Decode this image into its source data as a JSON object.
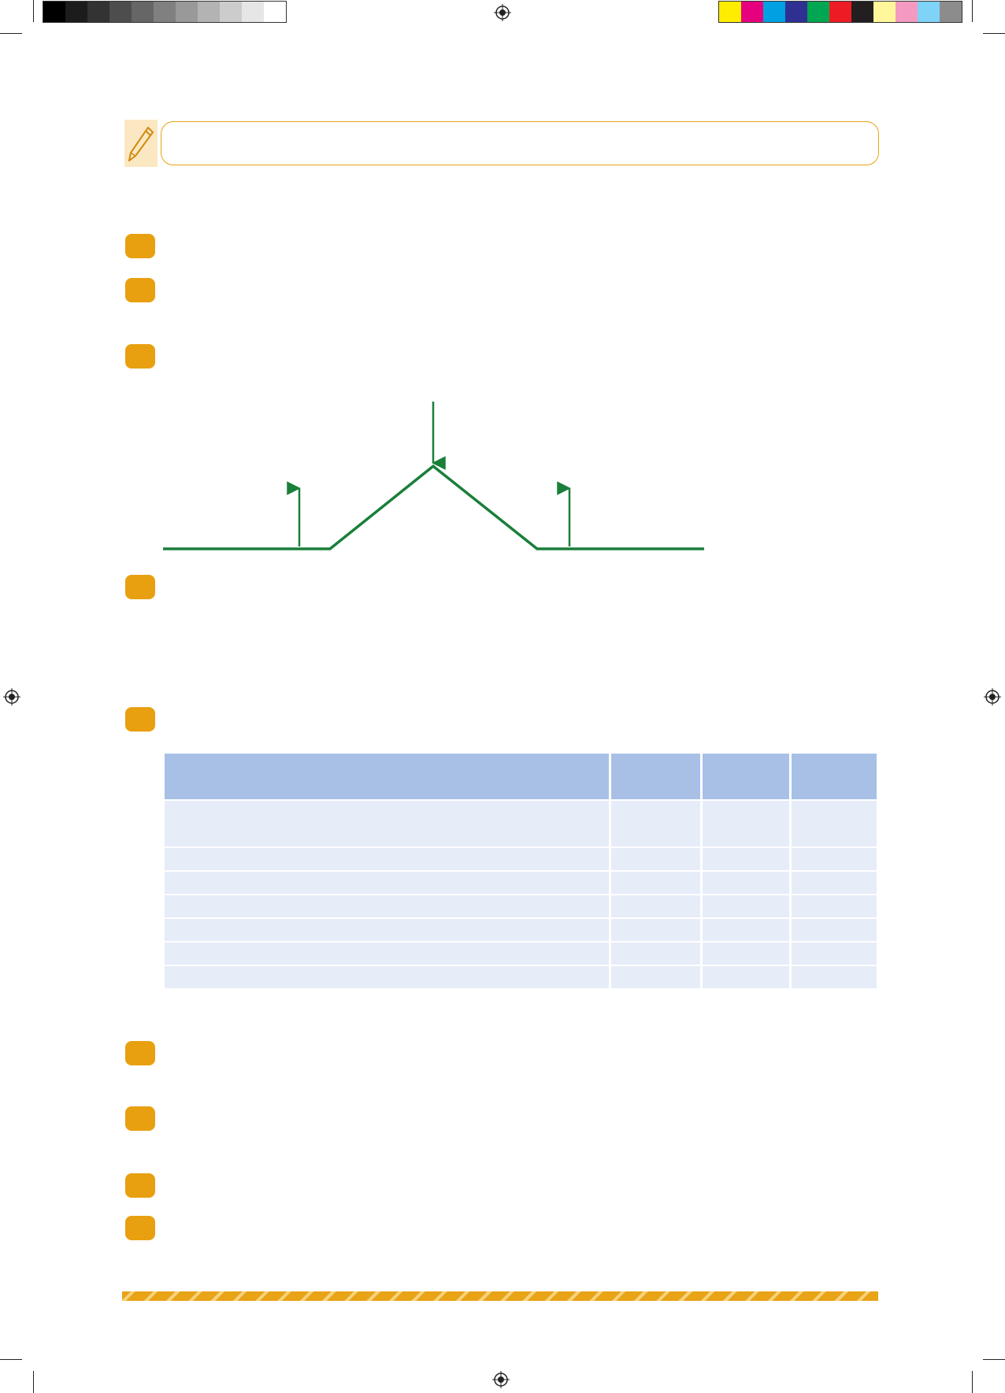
{
  "printer_marks": {
    "grayscale_swatches": [
      "#000000",
      "#1c1c1c",
      "#333333",
      "#4d4d4d",
      "#666666",
      "#808080",
      "#999999",
      "#b3b3b3",
      "#cccccc",
      "#e6e6e6",
      "#ffffff"
    ],
    "color_swatches": [
      "#ffed00",
      "#e6007e",
      "#00a0e3",
      "#2e3192",
      "#00a651",
      "#ed1c24",
      "#231f20",
      "#fff799",
      "#f49ac1",
      "#7fd3f7",
      "#8c8c8c"
    ]
  },
  "header": {
    "title": "",
    "icon": "pen-icon",
    "frame_color": "#e8a317"
  },
  "questions": [
    {
      "number": "",
      "text": ""
    },
    {
      "number": "",
      "text": ""
    },
    {
      "number": "",
      "text": ""
    },
    {
      "number": "",
      "text": ""
    },
    {
      "number": "",
      "text": ""
    },
    {
      "number": "",
      "text": ""
    },
    {
      "number": "",
      "text": ""
    },
    {
      "number": "",
      "text": ""
    },
    {
      "number": "",
      "text": ""
    }
  ],
  "diagram": {
    "line_color": "#1a7f3a",
    "arrow_labels": [
      "",
      "",
      ""
    ]
  },
  "table": {
    "headers": [
      "",
      "",
      "",
      ""
    ],
    "rows": [
      [
        "",
        "",
        "",
        ""
      ],
      [
        "",
        "",
        "",
        ""
      ],
      [
        "",
        "",
        "",
        ""
      ],
      [
        "",
        "",
        "",
        ""
      ],
      [
        "",
        "",
        "",
        ""
      ],
      [
        "",
        "",
        "",
        ""
      ],
      [
        "",
        "",
        "",
        ""
      ]
    ],
    "header_color": "#a8c0e6",
    "row_color": "#e6ecf8"
  },
  "bullet_color": "#e8a010"
}
